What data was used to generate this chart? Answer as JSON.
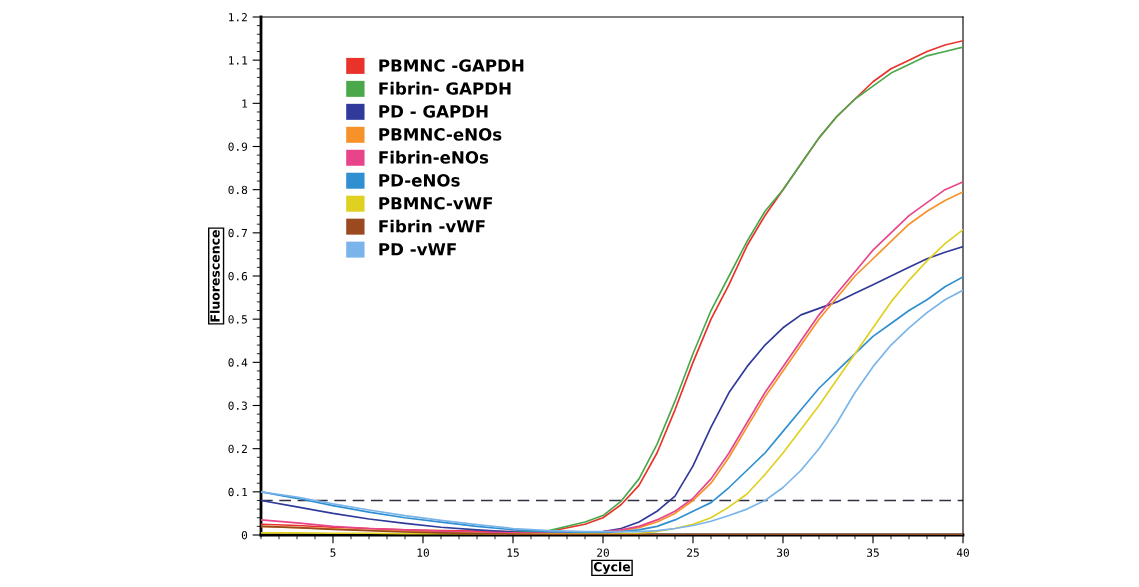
{
  "chart_data": {
    "type": "line",
    "xlabel": "Cycle",
    "ylabel": "Fluorescence",
    "x": [
      1,
      3,
      5,
      7,
      9,
      11,
      13,
      15,
      17,
      19,
      20,
      21,
      22,
      23,
      24,
      25,
      26,
      27,
      28,
      29,
      30,
      31,
      32,
      33,
      34,
      35,
      36,
      37,
      38,
      39,
      40
    ],
    "xlim": [
      1,
      40
    ],
    "xticks": [
      5,
      10,
      15,
      20,
      25,
      30,
      35,
      40
    ],
    "ylim": [
      0,
      1.2
    ],
    "yticks": [
      0,
      0.1,
      0.2,
      0.3,
      0.4,
      0.5,
      0.6,
      0.7,
      0.8,
      0.9,
      1,
      1.1,
      1.2
    ],
    "grid": false,
    "legend": "top left",
    "marker": "none",
    "line_style": "solid",
    "ref_lines": [
      {
        "axis": "y",
        "value": 0.08,
        "label": null,
        "color": "#303040",
        "line_style": "dashed"
      }
    ],
    "series": [
      {
        "name": "PBMNC -GAPDH",
        "color": "#e8322a",
        "values": [
          0.025,
          0.022,
          0.018,
          0.015,
          0.012,
          0.01,
          0.009,
          0.008,
          0.008,
          0.025,
          0.04,
          0.07,
          0.115,
          0.19,
          0.29,
          0.4,
          0.5,
          0.58,
          0.67,
          0.74,
          0.8,
          0.86,
          0.92,
          0.97,
          1.01,
          1.05,
          1.08,
          1.1,
          1.12,
          1.135,
          1.145
        ]
      },
      {
        "name": "Fibrin- GAPDH",
        "color": "#4aa84a",
        "values": [
          null,
          null,
          null,
          null,
          null,
          null,
          null,
          0.006,
          0.01,
          0.03,
          0.045,
          0.078,
          0.13,
          0.21,
          0.31,
          0.42,
          0.52,
          0.6,
          0.68,
          0.75,
          0.8,
          0.86,
          0.92,
          0.97,
          1.01,
          1.04,
          1.07,
          1.09,
          1.11,
          1.12,
          1.13
        ]
      },
      {
        "name": "PD - GAPDH",
        "color": "#2f3a9a",
        "values": [
          0.08,
          0.065,
          0.05,
          0.037,
          0.027,
          0.018,
          0.012,
          0.007,
          0.004,
          0.005,
          0.008,
          0.015,
          0.03,
          0.055,
          0.09,
          0.16,
          0.25,
          0.33,
          0.39,
          0.44,
          0.48,
          0.51,
          0.525,
          0.54,
          0.56,
          0.58,
          0.6,
          0.62,
          0.64,
          0.655,
          0.668
        ]
      },
      {
        "name": "PBMNC-eNOs",
        "color": "#f7922a",
        "values": [
          0.02,
          0.017,
          0.014,
          0.011,
          0.009,
          0.007,
          0.005,
          0.004,
          0.003,
          0.005,
          0.007,
          0.01,
          0.017,
          0.03,
          0.05,
          0.08,
          0.12,
          0.18,
          0.25,
          0.32,
          0.38,
          0.44,
          0.5,
          0.55,
          0.6,
          0.64,
          0.68,
          0.72,
          0.75,
          0.775,
          0.795
        ]
      },
      {
        "name": "Fibrin-eNOs",
        "color": "#e8448a",
        "values": [
          0.035,
          0.028,
          0.02,
          0.015,
          0.012,
          0.009,
          0.007,
          0.005,
          0.004,
          0.006,
          0.008,
          0.012,
          0.02,
          0.035,
          0.055,
          0.085,
          0.13,
          0.19,
          0.26,
          0.33,
          0.39,
          0.45,
          0.51,
          0.56,
          0.61,
          0.66,
          0.7,
          0.74,
          0.77,
          0.8,
          0.818
        ]
      },
      {
        "name": "PD-eNOs",
        "color": "#2f8fd0",
        "values": [
          0.1,
          0.085,
          0.068,
          0.053,
          0.04,
          0.03,
          0.02,
          0.012,
          0.008,
          0.006,
          0.006,
          0.008,
          0.012,
          0.02,
          0.035,
          0.055,
          0.075,
          0.11,
          0.15,
          0.19,
          0.24,
          0.29,
          0.34,
          0.38,
          0.42,
          0.46,
          0.49,
          0.52,
          0.545,
          0.575,
          0.598
        ]
      },
      {
        "name": "PBMNC-vWF",
        "color": "#e0d020",
        "values": [
          0.005,
          0.005,
          0.004,
          0.004,
          0.003,
          0.003,
          0.003,
          0.002,
          0.002,
          0.002,
          0.002,
          0.003,
          0.004,
          0.008,
          0.015,
          0.025,
          0.04,
          0.065,
          0.095,
          0.14,
          0.19,
          0.245,
          0.3,
          0.36,
          0.42,
          0.48,
          0.54,
          0.59,
          0.635,
          0.675,
          0.707
        ]
      },
      {
        "name": "Fibrin -vWF",
        "color": "#9a4a1e",
        "values": [
          0.02,
          0.017,
          0.013,
          0.01,
          0.007,
          0.005,
          0.003,
          0.002,
          0.001,
          0.001,
          0.001,
          0.001,
          0.001,
          0.001,
          0.001,
          0.001,
          0.001,
          0.001,
          0.001,
          0.001,
          0.001,
          0.001,
          0.001,
          0.001,
          0.001,
          0.001,
          0.001,
          0.001,
          0.001,
          0.001,
          0.001
        ]
      },
      {
        "name": "PD -vWF",
        "color": "#7ab4ea",
        "values": [
          0.1,
          0.088,
          0.072,
          0.058,
          0.045,
          0.034,
          0.024,
          0.015,
          0.01,
          0.008,
          0.008,
          0.008,
          0.008,
          0.01,
          0.015,
          0.022,
          0.032,
          0.045,
          0.06,
          0.08,
          0.11,
          0.15,
          0.2,
          0.26,
          0.33,
          0.39,
          0.44,
          0.48,
          0.515,
          0.545,
          0.567
        ]
      }
    ]
  }
}
